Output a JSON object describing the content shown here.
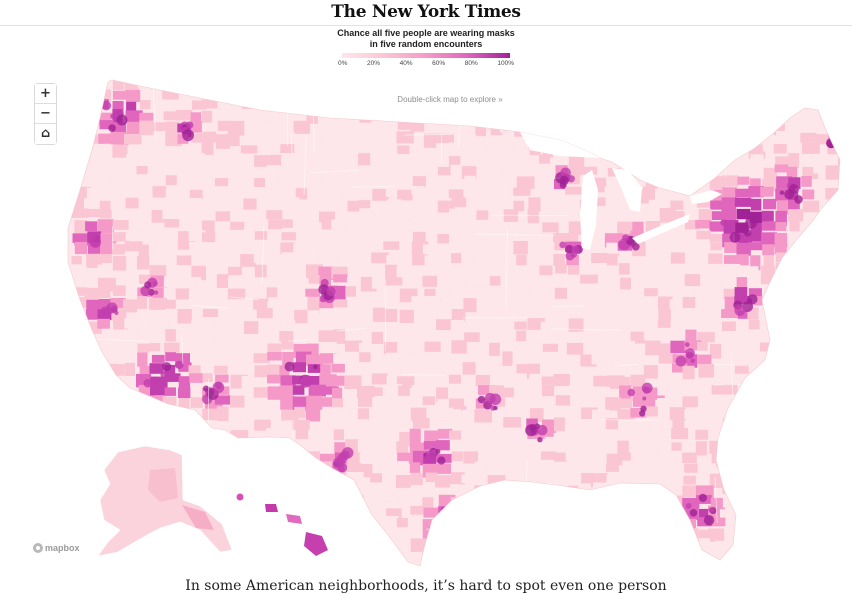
{
  "masthead": {
    "title": "The New York Times"
  },
  "legend": {
    "title_line1": "Chance all five people are wearing masks",
    "title_line2": "in five random encounters",
    "ticks": [
      "0%",
      "20%",
      "40%",
      "60%",
      "80%",
      "100%"
    ]
  },
  "controls": {
    "zoom_in": "+",
    "zoom_out": "−",
    "home": "⌂"
  },
  "hint": "Double-click map to explore »",
  "attribution": "mapbox",
  "caption": "In some American neighborhoods, it’s hard to spot even one person",
  "colors": {
    "scale": [
      "#fde7ea",
      "#fbc6d4",
      "#f59ac8",
      "#e065bd",
      "#c23fae",
      "#a02296"
    ],
    "county_border": "#ffffff"
  },
  "icons": [
    "plus-icon",
    "minus-icon",
    "home-icon",
    "mapbox-logo-icon"
  ]
}
